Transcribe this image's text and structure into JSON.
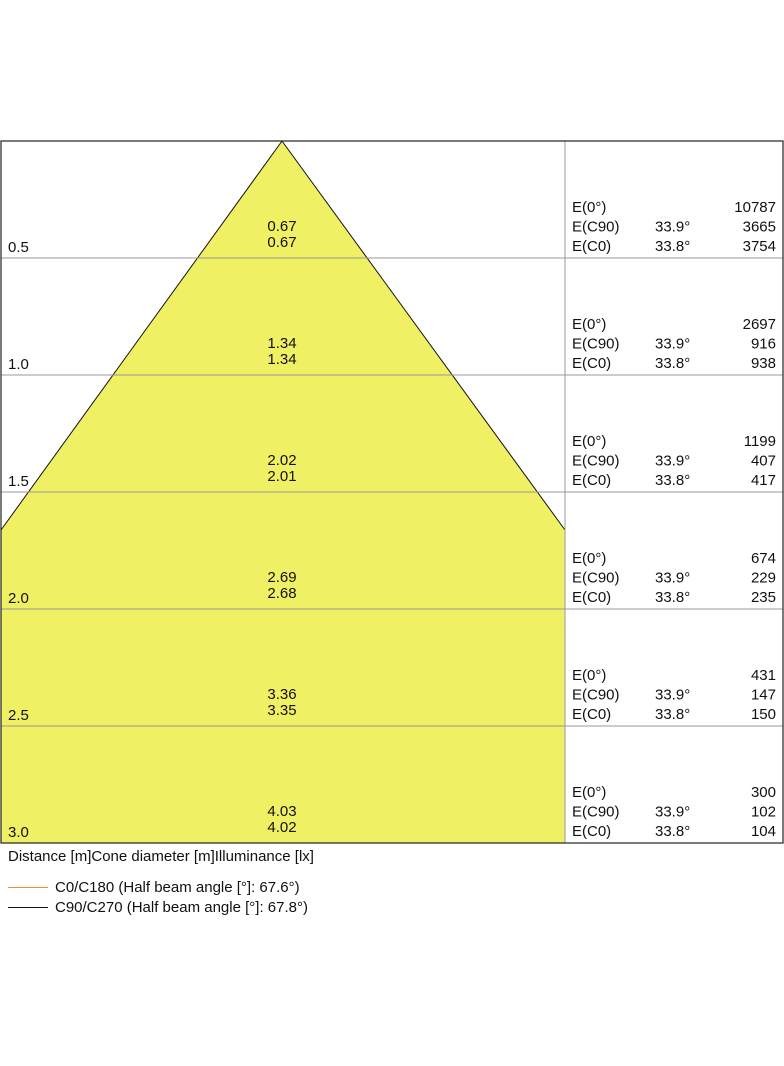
{
  "chart_data": {
    "type": "cone-diagram",
    "column_labels": [
      "Distance [m]",
      "Cone diameter [m]",
      "Illuminance [lx]"
    ],
    "fill_color": "#f0f064",
    "rows": [
      {
        "distance": "0.5",
        "diam_c0": "0.67",
        "diam_c90": "0.67",
        "e0_label": "E(0°)",
        "e0": "10787",
        "ec90_label": "E(C90)",
        "ec90_angle": "33.9°",
        "ec90": "3665",
        "ec0_label": "E(C0)",
        "ec0_angle": "33.8°",
        "ec0": "3754"
      },
      {
        "distance": "1.0",
        "diam_c0": "1.34",
        "diam_c90": "1.34",
        "e0_label": "E(0°)",
        "e0": "2697",
        "ec90_label": "E(C90)",
        "ec90_angle": "33.9°",
        "ec90": "916",
        "ec0_label": "E(C0)",
        "ec0_angle": "33.8°",
        "ec0": "938"
      },
      {
        "distance": "1.5",
        "diam_c0": "2.02",
        "diam_c90": "2.01",
        "e0_label": "E(0°)",
        "e0": "1199",
        "ec90_label": "E(C90)",
        "ec90_angle": "33.9°",
        "ec90": "407",
        "ec0_label": "E(C0)",
        "ec0_angle": "33.8°",
        "ec0": "417"
      },
      {
        "distance": "2.0",
        "diam_c0": "2.69",
        "diam_c90": "2.68",
        "e0_label": "E(0°)",
        "e0": "674",
        "ec90_label": "E(C90)",
        "ec90_angle": "33.9°",
        "ec90": "229",
        "ec0_label": "E(C0)",
        "ec0_angle": "33.8°",
        "ec0": "235"
      },
      {
        "distance": "2.5",
        "diam_c0": "3.36",
        "diam_c90": "3.35",
        "e0_label": "E(0°)",
        "e0": "431",
        "ec90_label": "E(C90)",
        "ec90_angle": "33.9°",
        "ec90": "147",
        "ec0_label": "E(C0)",
        "ec0_angle": "33.8°",
        "ec0": "150"
      },
      {
        "distance": "3.0",
        "diam_c0": "4.03",
        "diam_c90": "4.02",
        "e0_label": "E(0°)",
        "e0": "300",
        "ec90_label": "E(C90)",
        "ec90_angle": "33.9°",
        "ec90": "102",
        "ec0_label": "E(C0)",
        "ec0_angle": "33.8°",
        "ec0": "104"
      }
    ],
    "legend": [
      {
        "label": "C0/C180 (Half beam angle [°]: 67.6°)",
        "color": "#f08a3c"
      },
      {
        "label": "C90/C270 (Half beam angle [°]: 67.8°)",
        "color": "#111111"
      }
    ]
  }
}
